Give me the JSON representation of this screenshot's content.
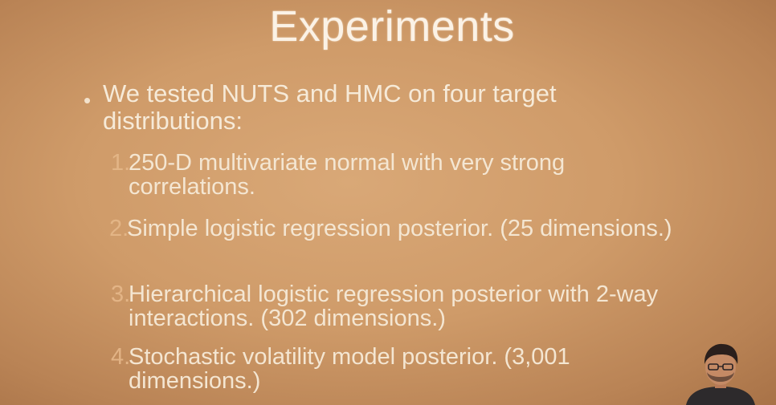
{
  "slide": {
    "title": "Experiments",
    "bullet": "We tested NUTS and HMC on four target distributions:",
    "items": [
      {
        "number": "1.",
        "text": "250-D multivariate normal with very strong correlations."
      },
      {
        "number": "2.",
        "text": "Simple logistic regression posterior. (25 dimensions.)"
      },
      {
        "number": "3.",
        "text": "Hierarchical logistic regression posterior with 2-way interactions. (302 dimensions.)"
      },
      {
        "number": "4.",
        "text": "Stochastic volatility model posterior. (3,001 dimensions.)"
      }
    ]
  },
  "colors": {
    "background": "#cf9b69",
    "text": "#f6ead8",
    "number": "#e6b88a"
  }
}
